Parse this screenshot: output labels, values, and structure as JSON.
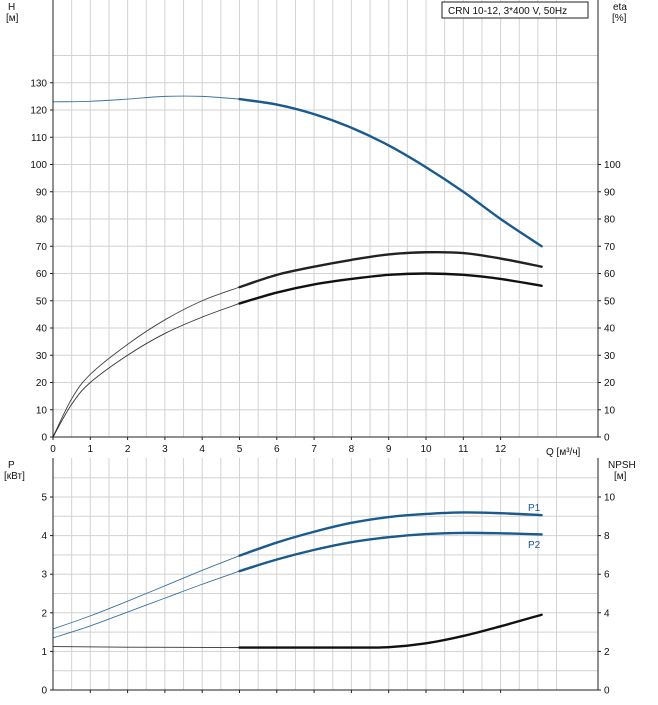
{
  "title_box": "CRN 10-12, 3*400 V, 50Hz",
  "colors": {
    "grid": "#d3d3d3",
    "axis": "#222222",
    "blue": "#1a5a8c",
    "black": "#111111",
    "dark": "#333333"
  },
  "chart_data": [
    {
      "type": "line",
      "panel": "head-efficiency",
      "xlabel": "Q [м³/ч]",
      "x_ticks": [
        "0",
        "1",
        "2",
        "3",
        "4",
        "5",
        "6",
        "7",
        "8",
        "9",
        "10",
        "11",
        "12"
      ],
      "xlim": [
        0,
        13.5
      ],
      "y_left": {
        "label_line1": "H",
        "label_line2": "[м]",
        "lim": [
          0,
          150
        ],
        "ticks": [
          0,
          10,
          20,
          30,
          40,
          50,
          60,
          70,
          80,
          90,
          100,
          110,
          120,
          130
        ]
      },
      "y_right": {
        "label_line1": "eta",
        "label_line2": "[%]",
        "lim": [
          0,
          150
        ],
        "ticks": [
          0,
          10,
          20,
          30,
          40,
          50,
          60,
          70,
          80,
          90,
          100
        ]
      },
      "series": [
        {
          "id": "head",
          "axis": "left",
          "color": "#1a5a8c",
          "split_x": 5,
          "points": [
            [
              0,
              123
            ],
            [
              1,
              123.2
            ],
            [
              2,
              124
            ],
            [
              3,
              125
            ],
            [
              4,
              125
            ],
            [
              5,
              124
            ],
            [
              6,
              122
            ],
            [
              7,
              118.5
            ],
            [
              8,
              113.5
            ],
            [
              9,
              107
            ],
            [
              10,
              99
            ],
            [
              11,
              90
            ],
            [
              12,
              80
            ],
            [
              13.1,
              70
            ]
          ]
        },
        {
          "id": "eta-upper",
          "axis": "right",
          "color": "#222222",
          "split_x": 5,
          "points": [
            [
              0,
              0
            ],
            [
              0.5,
              14
            ],
            [
              1,
              23
            ],
            [
              2,
              34
            ],
            [
              3,
              43
            ],
            [
              4,
              50
            ],
            [
              5,
              55
            ],
            [
              6,
              59.5
            ],
            [
              7,
              62.5
            ],
            [
              8,
              65
            ],
            [
              9,
              67
            ],
            [
              10,
              67.8
            ],
            [
              11,
              67.5
            ],
            [
              12,
              65.5
            ],
            [
              13.1,
              62.5
            ]
          ]
        },
        {
          "id": "eta-lower",
          "axis": "right",
          "color": "#111111",
          "split_x": 5,
          "points": [
            [
              0,
              0
            ],
            [
              0.5,
              12
            ],
            [
              1,
              20
            ],
            [
              2,
              30
            ],
            [
              3,
              38
            ],
            [
              4,
              44
            ],
            [
              5,
              49
            ],
            [
              6,
              53
            ],
            [
              7,
              56
            ],
            [
              8,
              58
            ],
            [
              9,
              59.5
            ],
            [
              10,
              60
            ],
            [
              11,
              59.5
            ],
            [
              12,
              58
            ],
            [
              13.1,
              55.5
            ]
          ]
        }
      ]
    },
    {
      "type": "line",
      "panel": "power-npsh",
      "xlim": [
        0,
        13.5
      ],
      "y_left": {
        "label_line1": "P",
        "label_line2": "[кВт]",
        "lim": [
          0,
          5.5
        ],
        "ticks": [
          0,
          1,
          2,
          3,
          4,
          5
        ]
      },
      "y_right": {
        "label_line1": "NPSH",
        "label_line2": "[м]",
        "lim": [
          0,
          11
        ],
        "ticks": [
          0,
          2,
          4,
          6,
          8,
          10
        ]
      },
      "series": [
        {
          "id": "P1",
          "name": "P1",
          "axis": "left",
          "color": "#1a5a8c",
          "split_x": 5,
          "points": [
            [
              0,
              1.58
            ],
            [
              1,
              1.92
            ],
            [
              2,
              2.3
            ],
            [
              3,
              2.7
            ],
            [
              4,
              3.1
            ],
            [
              5,
              3.48
            ],
            [
              6,
              3.82
            ],
            [
              7,
              4.1
            ],
            [
              8,
              4.33
            ],
            [
              9,
              4.48
            ],
            [
              10,
              4.56
            ],
            [
              11,
              4.6
            ],
            [
              12,
              4.58
            ],
            [
              13.1,
              4.53
            ]
          ]
        },
        {
          "id": "P2",
          "name": "P2",
          "axis": "left",
          "color": "#1a5a8c",
          "split_x": 5,
          "points": [
            [
              0,
              1.35
            ],
            [
              1,
              1.66
            ],
            [
              2,
              2.02
            ],
            [
              3,
              2.38
            ],
            [
              4,
              2.74
            ],
            [
              5,
              3.08
            ],
            [
              6,
              3.38
            ],
            [
              7,
              3.63
            ],
            [
              8,
              3.83
            ],
            [
              9,
              3.96
            ],
            [
              10,
              4.04
            ],
            [
              11,
              4.07
            ],
            [
              12,
              4.06
            ],
            [
              13.1,
              4.03
            ]
          ]
        },
        {
          "id": "NPSH",
          "axis": "right",
          "color": "#111111",
          "split_x": 5,
          "points": [
            [
              0,
              2.25
            ],
            [
              2,
              2.22
            ],
            [
              5,
              2.2
            ],
            [
              6,
              2.2
            ],
            [
              7,
              2.2
            ],
            [
              8,
              2.2
            ],
            [
              9,
              2.22
            ],
            [
              10,
              2.42
            ],
            [
              11,
              2.8
            ],
            [
              12,
              3.3
            ],
            [
              13.1,
              3.9
            ]
          ]
        }
      ]
    }
  ]
}
